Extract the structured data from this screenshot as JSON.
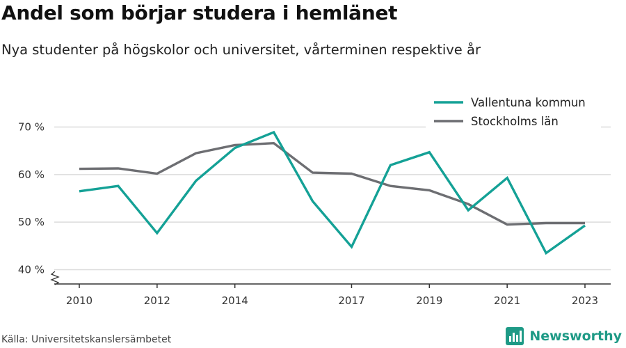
{
  "title": "Andel som börjar studera i hemlänet",
  "subtitle": "Nya studenter på högskolor och universitet, vårterminen respektive år",
  "source": "Källa: Universitetskanslersämbetet",
  "brand": {
    "name": "Newsworthy",
    "icon": "newsworthy-logo-icon",
    "color": "#1e9a86"
  },
  "chart_data": {
    "type": "line",
    "x": [
      2010,
      2011,
      2012,
      2013,
      2014,
      2015,
      2016,
      2017,
      2018,
      2019,
      2020,
      2021,
      2022,
      2023
    ],
    "x_tick_labels": [
      "2010",
      "2012",
      "2014",
      "2017",
      "2019",
      "2021",
      "2023"
    ],
    "y_tick_labels": [
      "40 %",
      "50 %",
      "60 %",
      "70 %"
    ],
    "y_ticks": [
      40,
      50,
      60,
      70
    ],
    "ylim": [
      40,
      72
    ],
    "y_axis_break": true,
    "grid": "horizontal",
    "legend_position": "top-right",
    "series": [
      {
        "name": "Vallentuna kommun",
        "color": "#14a196",
        "values": [
          56.5,
          57.6,
          47.7,
          58.7,
          65.6,
          68.9,
          54.4,
          44.8,
          62.0,
          64.7,
          52.5,
          59.3,
          43.5,
          49.3
        ]
      },
      {
        "name": "Stockholms län",
        "color": "#6d6e72",
        "values": [
          61.2,
          61.3,
          60.2,
          64.5,
          66.2,
          66.6,
          60.4,
          60.2,
          57.6,
          56.7,
          53.8,
          49.5,
          49.8,
          49.8
        ]
      }
    ]
  }
}
